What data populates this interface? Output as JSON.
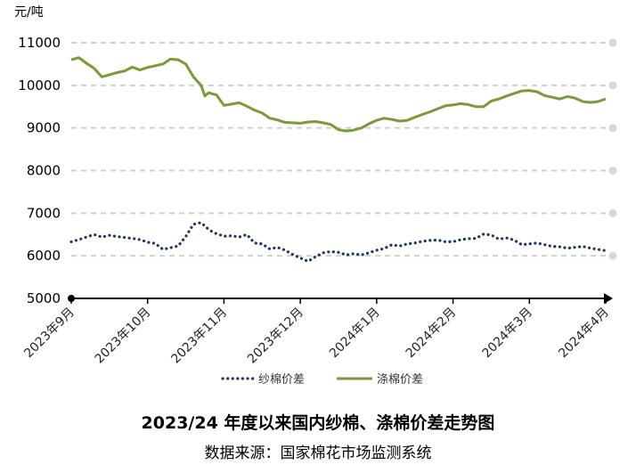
{
  "chart_data": {
    "type": "line",
    "title": "2023/24 年度以来国内纱棉、涤棉价差走势图",
    "source": "数据来源：国家棉花市场监测系统",
    "unit_label": "元/吨",
    "ylim": [
      5000,
      11000
    ],
    "yticks": [
      "5000",
      "6000",
      "7000",
      "8000",
      "9000",
      "10000",
      "11000"
    ],
    "grid": true,
    "legend_position": "bottom",
    "x_categories": [
      "2023年9月",
      "2023年10月",
      "2023年11月",
      "2023年12月",
      "2024年1月",
      "2024年2月",
      "2024年3月",
      "2024年4月"
    ],
    "x_domain": [
      0,
      7
    ],
    "colors": {
      "yarn": "#1f3864",
      "poly": "#7a9a3c"
    },
    "series": [
      {
        "name": "纱棉价差",
        "style": "dotted",
        "x": [
          0.0,
          0.1,
          0.2,
          0.3,
          0.4,
          0.5,
          0.6,
          0.7,
          0.8,
          0.9,
          1.0,
          1.1,
          1.2,
          1.3,
          1.4,
          1.5,
          1.6,
          1.7,
          1.75,
          1.8,
          1.85,
          1.9,
          2.0,
          2.1,
          2.2,
          2.3,
          2.4,
          2.5,
          2.6,
          2.7,
          2.8,
          2.9,
          3.0,
          3.1,
          3.2,
          3.3,
          3.4,
          3.5,
          3.6,
          3.7,
          3.8,
          3.9,
          4.0,
          4.1,
          4.2,
          4.3,
          4.4,
          4.5,
          4.6,
          4.7,
          4.8,
          4.9,
          5.0,
          5.1,
          5.2,
          5.3,
          5.4,
          5.5,
          5.6,
          5.7,
          5.8,
          5.9,
          6.0,
          6.1,
          6.2,
          6.3,
          6.4,
          6.5,
          6.6,
          6.7,
          6.8,
          6.9,
          7.0
        ],
        "values": [
          6330,
          6380,
          6440,
          6500,
          6440,
          6480,
          6450,
          6430,
          6410,
          6380,
          6320,
          6290,
          6150,
          6190,
          6230,
          6450,
          6740,
          6780,
          6700,
          6620,
          6560,
          6520,
          6460,
          6470,
          6440,
          6500,
          6300,
          6280,
          6160,
          6200,
          6130,
          6030,
          5950,
          5870,
          5980,
          6070,
          6100,
          6080,
          6020,
          6050,
          6020,
          6070,
          6130,
          6170,
          6260,
          6230,
          6280,
          6300,
          6340,
          6360,
          6370,
          6330,
          6330,
          6380,
          6400,
          6410,
          6510,
          6490,
          6390,
          6420,
          6370,
          6260,
          6280,
          6300,
          6260,
          6220,
          6210,
          6180,
          6200,
          6220,
          6180,
          6150,
          6120
        ]
      },
      {
        "name": "涤棉价差",
        "style": "solid",
        "x": [
          0.0,
          0.1,
          0.2,
          0.3,
          0.4,
          0.5,
          0.6,
          0.7,
          0.8,
          0.9,
          1.0,
          1.1,
          1.2,
          1.3,
          1.4,
          1.5,
          1.6,
          1.7,
          1.75,
          1.8,
          1.85,
          1.9,
          2.0,
          2.1,
          2.2,
          2.3,
          2.4,
          2.5,
          2.6,
          2.7,
          2.8,
          2.9,
          3.0,
          3.1,
          3.2,
          3.3,
          3.4,
          3.5,
          3.6,
          3.7,
          3.8,
          3.9,
          4.0,
          4.1,
          4.2,
          4.3,
          4.4,
          4.5,
          4.6,
          4.7,
          4.8,
          4.9,
          5.0,
          5.1,
          5.2,
          5.3,
          5.4,
          5.5,
          5.6,
          5.7,
          5.8,
          5.9,
          6.0,
          6.1,
          6.2,
          6.3,
          6.4,
          6.5,
          6.6,
          6.7,
          6.8,
          6.9,
          7.0
        ],
        "values": [
          10600,
          10650,
          10520,
          10400,
          10200,
          10250,
          10300,
          10340,
          10430,
          10360,
          10420,
          10460,
          10500,
          10620,
          10600,
          10500,
          10200,
          10000,
          9750,
          9830,
          9800,
          9780,
          9530,
          9560,
          9590,
          9510,
          9420,
          9350,
          9230,
          9190,
          9130,
          9120,
          9110,
          9140,
          9150,
          9120,
          9080,
          8960,
          8930,
          8950,
          9000,
          9100,
          9180,
          9230,
          9200,
          9160,
          9180,
          9250,
          9320,
          9380,
          9450,
          9520,
          9540,
          9570,
          9550,
          9500,
          9500,
          9630,
          9680,
          9750,
          9810,
          9870,
          9880,
          9850,
          9760,
          9720,
          9680,
          9740,
          9700,
          9620,
          9600,
          9620,
          9680
        ]
      }
    ]
  }
}
